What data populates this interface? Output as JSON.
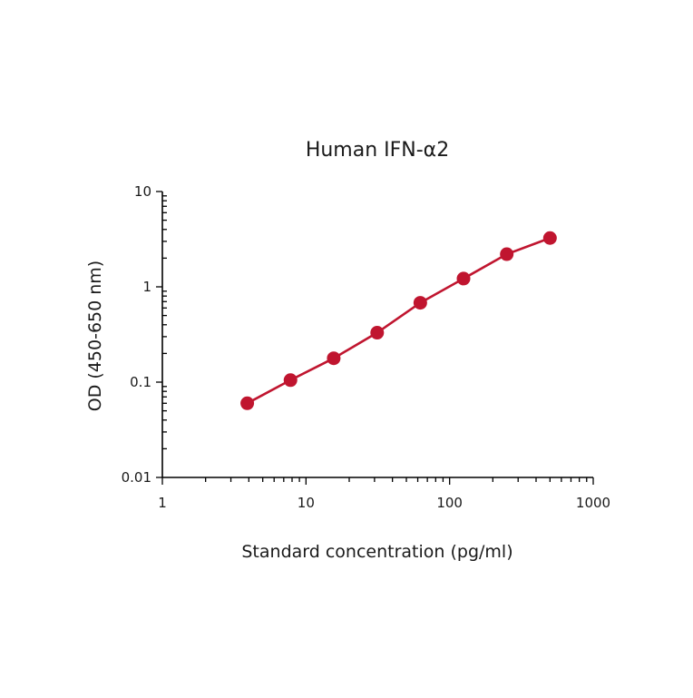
{
  "chart_data": {
    "type": "line",
    "title": "Human IFN-α2",
    "xlabel": "Standard concentration (pg/ml)",
    "ylabel": "OD (450-650 nm)",
    "x_scale": "log",
    "y_scale": "log",
    "xlim": [
      1,
      1000
    ],
    "ylim": [
      0.01,
      10
    ],
    "x_ticks": [
      {
        "value": 1,
        "label": "1"
      },
      {
        "value": 10,
        "label": "10"
      },
      {
        "value": 100,
        "label": "100"
      },
      {
        "value": 1000,
        "label": "1000"
      }
    ],
    "y_ticks": [
      {
        "value": 0.01,
        "label": "0.01"
      },
      {
        "value": 0.1,
        "label": "0.1"
      },
      {
        "value": 1,
        "label": "1"
      },
      {
        "value": 10,
        "label": "10"
      }
    ],
    "grid": false,
    "legend": "none",
    "series": [
      {
        "color": "#c0152f",
        "x": [
          3.9,
          7.8,
          15.6,
          31.3,
          62.5,
          125,
          250,
          500
        ],
        "y": [
          0.06,
          0.105,
          0.178,
          0.33,
          0.68,
          1.22,
          2.2,
          3.25
        ]
      }
    ]
  }
}
